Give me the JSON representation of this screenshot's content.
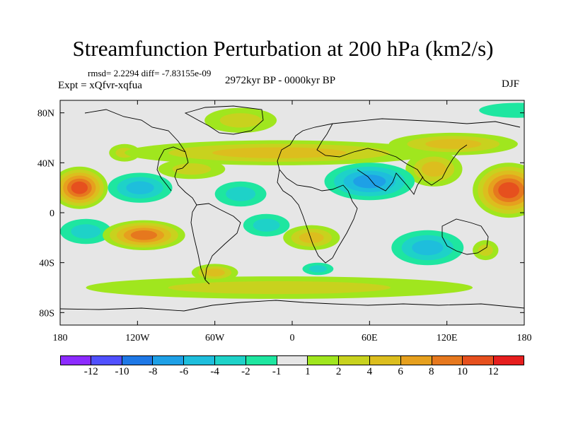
{
  "title": "Streamfunction Perturbation at 200 hPa (km2/s)",
  "stats": "rmsd= 2.2294 diff= -7.83155e-09",
  "experiment": "Expt = xQfvr-xqfua",
  "period": "2972kyr BP - 0000kyr BP",
  "season": "DJF",
  "colors": {
    "background": "#ffffff",
    "ocean_neutral": "#e6e6e6",
    "coast": "#000000"
  },
  "map": {
    "type": "filled-contour",
    "projection": "cylindrical equidistant",
    "lon_range": [
      -180,
      180
    ],
    "lat_range": [
      -90,
      90
    ],
    "lon_ticks": [
      {
        "value": -180,
        "label": "180"
      },
      {
        "value": -120,
        "label": "120W"
      },
      {
        "value": -60,
        "label": "60W"
      },
      {
        "value": 0,
        "label": "0"
      },
      {
        "value": 60,
        "label": "60E"
      },
      {
        "value": 120,
        "label": "120E"
      },
      {
        "value": 180,
        "label": "180"
      }
    ],
    "lat_ticks": [
      {
        "value": 80,
        "label": "80N"
      },
      {
        "value": 40,
        "label": "40N"
      },
      {
        "value": 0,
        "label": "0"
      },
      {
        "value": -40,
        "label": "40S"
      },
      {
        "value": -80,
        "label": "80S"
      }
    ],
    "features": [
      {
        "name": "high-central-pacific-north",
        "lon": -165,
        "lat": 20,
        "peak": 11,
        "rx": 22,
        "ry": 17
      },
      {
        "name": "high-western-pacific-north",
        "lon": 168,
        "lat": 18,
        "peak": 10,
        "rx": 28,
        "ry": 22
      },
      {
        "name": "ridge-pacific-band-north",
        "lon": 125,
        "lat": 55,
        "peak": 5,
        "rx": 50,
        "ry": 9
      },
      {
        "name": "ridge-east-asia",
        "lon": 110,
        "lat": 35,
        "peak": 5,
        "rx": 22,
        "ry": 14
      },
      {
        "name": "ridge-atlantic-eurasia-band",
        "lon": -10,
        "lat": 48,
        "peak": 4,
        "rx": 120,
        "ry": 10
      },
      {
        "name": "ridge-north-america",
        "lon": -78,
        "lat": 35,
        "peak": 3,
        "rx": 26,
        "ry": 8
      },
      {
        "name": "greenland-high",
        "lon": -40,
        "lat": 74,
        "peak": 3,
        "rx": 28,
        "ry": 10
      },
      {
        "name": "north-atlantic-high",
        "lon": -130,
        "lat": 48,
        "peak": 2,
        "rx": 12,
        "ry": 7
      },
      {
        "name": "low-india-arabia",
        "lon": 60,
        "lat": 25,
        "peak": -7,
        "rx": 35,
        "ry": 15
      },
      {
        "name": "low-east-pacific",
        "lon": -118,
        "lat": 20,
        "peak": -5,
        "rx": 25,
        "ry": 12
      },
      {
        "name": "low-north-pacific",
        "lon": 175,
        "lat": 82,
        "peak": -1,
        "rx": 30,
        "ry": 6
      },
      {
        "name": "low-atlantic-tropics",
        "lon": -40,
        "lat": 15,
        "peak": -3,
        "rx": 20,
        "ry": 10
      },
      {
        "name": "low-australia-indian-ocean",
        "lon": 105,
        "lat": -28,
        "peak": -5,
        "rx": 28,
        "ry": 14
      },
      {
        "name": "low-tropical-atlantic-south",
        "lon": -20,
        "lat": -10,
        "peak": -2,
        "rx": 18,
        "ry": 9
      },
      {
        "name": "high-south-pacific",
        "lon": -115,
        "lat": -18,
        "peak": 8,
        "rx": 32,
        "ry": 12
      },
      {
        "name": "high-south-atlantic",
        "lon": 15,
        "lat": -20,
        "peak": 4,
        "rx": 22,
        "ry": 10
      },
      {
        "name": "high-southern-ocean-band",
        "lon": -10,
        "lat": -60,
        "peak": 3,
        "rx": 150,
        "ry": 9
      },
      {
        "name": "high-south-america-south",
        "lon": -60,
        "lat": -48,
        "peak": 5,
        "rx": 18,
        "ry": 7
      },
      {
        "name": "low-southern-ocean-east",
        "lon": 20,
        "lat": -45,
        "peak": -2,
        "rx": 12,
        "ry": 5
      },
      {
        "name": "low-south-pacific-east",
        "lon": -160,
        "lat": -15,
        "peak": -3,
        "rx": 20,
        "ry": 10
      },
      {
        "name": "high-australia-east",
        "lon": 150,
        "lat": -30,
        "peak": 2,
        "rx": 10,
        "ry": 8
      }
    ]
  },
  "colorbar": {
    "labels": [
      "-12",
      "-10",
      "-8",
      "-6",
      "-4",
      "-2",
      "-1",
      "1",
      "2",
      "4",
      "6",
      "8",
      "10",
      "12"
    ],
    "colors": [
      "#8c2bff",
      "#5050ff",
      "#1e78e6",
      "#1ea0e6",
      "#1ebedc",
      "#1ed2c8",
      "#1ee6a0",
      "#e6e6e6",
      "#a0e61e",
      "#c8d21e",
      "#dcbe1e",
      "#e6a01e",
      "#e6781e",
      "#e6501e",
      "#e61e1e"
    ]
  }
}
